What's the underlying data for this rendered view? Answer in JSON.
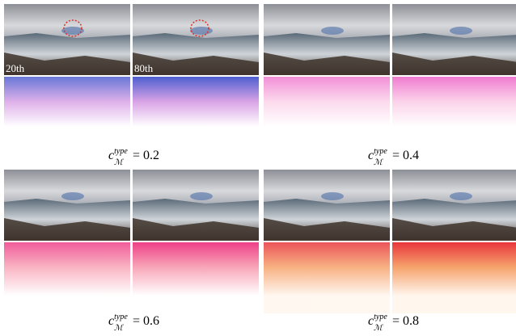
{
  "panels": [
    {
      "image_labels": [
        "20th",
        "80th"
      ],
      "caption": {
        "symbol": "c",
        "superscript": "type",
        "subscript": "ℳ",
        "text": "= 0.2"
      }
    },
    {
      "caption": {
        "symbol": "c",
        "superscript": "type",
        "subscript": "ℳ",
        "text": "= 0.4"
      }
    },
    {
      "caption": {
        "symbol": "c",
        "superscript": "type",
        "subscript": "ℳ",
        "text": "= 0.6"
      }
    },
    {
      "caption": {
        "symbol": "c",
        "superscript": "type",
        "subscript": "ℳ",
        "text": "= 0.8"
      }
    }
  ]
}
